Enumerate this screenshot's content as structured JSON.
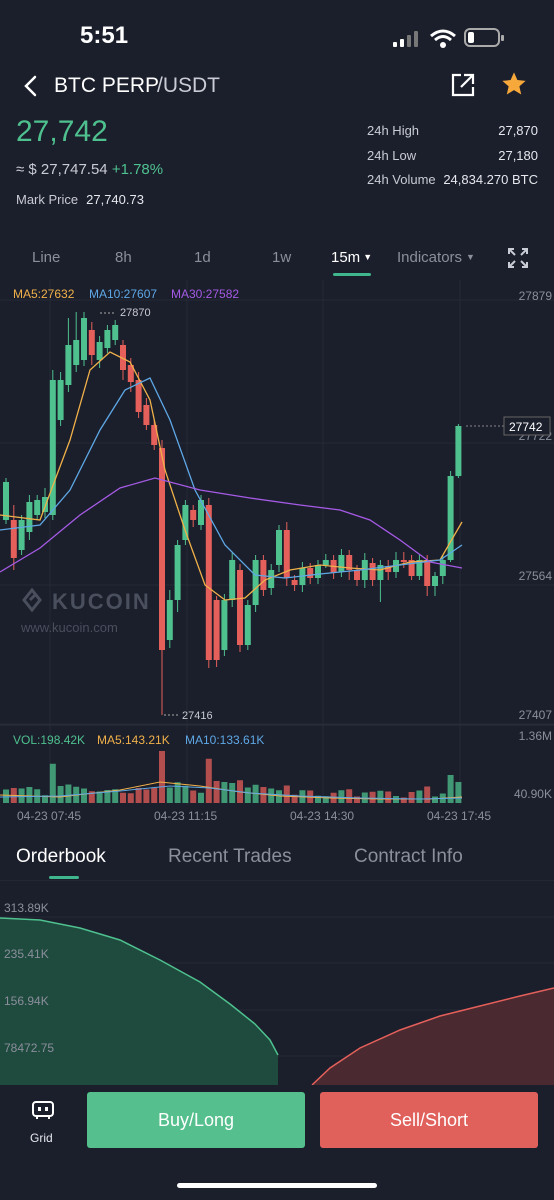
{
  "status_bar": {
    "time": "5:51"
  },
  "header": {
    "pair_base": "BTC PERP",
    "pair_quote": "/USDT"
  },
  "ticker": {
    "last_price": "27,742",
    "approx_usd": "≈ $ 27,747.54",
    "change_pct": "+1.78%",
    "mark_price_label": "Mark Price",
    "mark_price": "27,740.73",
    "high_label": "24h High",
    "high": "27,870",
    "low_label": "24h Low",
    "low": "27,180",
    "volume_label": "24h Volume",
    "volume": "24,834.270 BTC"
  },
  "timeframes": {
    "line": "Line",
    "h8": "8h",
    "d1": "1d",
    "w1": "1w",
    "m15": "15m",
    "indicators": "Indicators"
  },
  "chart_data": {
    "type": "candlestick",
    "interval": "15m",
    "indicators": {
      "ma5": "MA5:27632",
      "ma10": "MA10:27607",
      "ma30": "MA30:27582"
    },
    "y_axis_labels": [
      "27879",
      "27722",
      "27564",
      "27407"
    ],
    "ylim": [
      27407,
      27879
    ],
    "last_price_tag": "27742",
    "high_marker": "27870",
    "low_marker": "27416",
    "watermark": "KUCOIN",
    "watermark_url": "www.kucoin.com",
    "volume": {
      "vol_label": "VOL:198.42K",
      "ma5_label": "MA5:143.21K",
      "ma10_label": "MA10:133.61K",
      "axis_top": "1.36M",
      "axis_bottom": "40.90K"
    },
    "x_axis_labels": [
      "04-23 07:45",
      "04-23 11:15",
      "04-23 14:30",
      "04-23 17:45"
    ]
  },
  "bottom_tabs": {
    "orderbook": "Orderbook",
    "recent_trades": "Recent Trades",
    "contract_info": "Contract Info"
  },
  "depth_chart": {
    "y_labels": [
      "313.89K",
      "235.41K",
      "156.94K",
      "78472.75"
    ]
  },
  "footer": {
    "grid_label": "Grid",
    "buy": "Buy/Long",
    "sell": "Sell/Short"
  },
  "colors": {
    "up": "#4ec18f",
    "down": "#e5605b",
    "ma5": "#f0b14a",
    "ma10": "#5ea8e6",
    "ma30": "#a55be6"
  }
}
